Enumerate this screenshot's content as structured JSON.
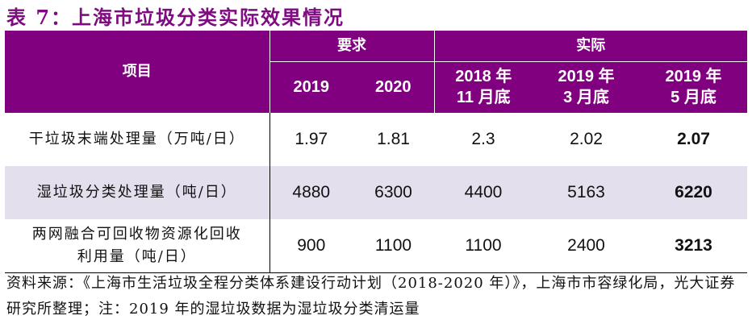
{
  "title": "表 7：上海市垃圾分类实际效果情况",
  "header": {
    "item": "项目",
    "group_required": "要求",
    "group_actual": "实际",
    "cols": [
      "2019",
      "2020",
      "2018 年\n11 月底",
      "2019 年\n3 月底",
      "2019 年\n5 月底"
    ],
    "col_lines": [
      [
        "2019"
      ],
      [
        "2020"
      ],
      [
        "2018 年",
        "11 月底"
      ],
      [
        "2019 年",
        "3 月底"
      ],
      [
        "2019 年",
        "5 月底"
      ]
    ]
  },
  "rows": [
    {
      "label": "干垃圾末端处理量（万吨/日）",
      "values": [
        "1.97",
        "1.81",
        "2.3",
        "2.02",
        "2.07"
      ]
    },
    {
      "label": "湿垃圾分类处理量（吨/日）",
      "values": [
        "4880",
        "6300",
        "4400",
        "5163",
        "6220"
      ]
    },
    {
      "label": "两网融合可回收物资源化回收利用量（吨/日）",
      "label_lines": [
        "两网融合可回收物资源化回收",
        "利用量（吨/日）"
      ],
      "values": [
        "900",
        "1100",
        "1100",
        "2400",
        "3213"
      ]
    }
  ],
  "footnote": "资料来源：《上海市生活垃圾全程分类体系建设行动计划（2018-2020 年）》，上海市市容绿化局，光大证券研究所整理；注：2019 年的湿垃圾数据为湿垃圾分类清运量"
}
